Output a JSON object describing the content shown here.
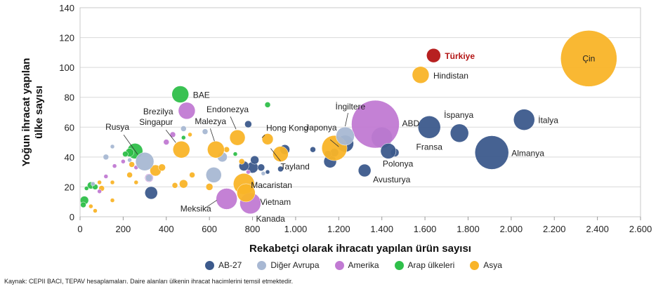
{
  "chart_data": {
    "type": "scatter",
    "xlabel": "Rekabetçi olarak ihracatı yapılan ürün sayısı",
    "ylabel": "Yoğun ihracat yapılan\nülke sayısı",
    "xlim": [
      0,
      2600
    ],
    "ylim": [
      0,
      140
    ],
    "x_ticks": [
      "0",
      "200",
      "400",
      "600",
      "800",
      "1.000",
      "1.200",
      "1.400",
      "1.600",
      "1.800",
      "2.000",
      "2.200",
      "2.400",
      "2.600"
    ],
    "y_ticks": [
      "0",
      "20",
      "40",
      "60",
      "80",
      "100",
      "120",
      "140"
    ],
    "grid": "horizontal",
    "legend_position": "bottom",
    "colors": {
      "AB-27": "#3c5a8c",
      "Diğer Avrupa": "#a8b8d3",
      "Amerika": "#c17ad3",
      "Arap ülkeleri": "#2fbf4a",
      "Asya": "#f9b428",
      "Türkiye": "#b31414"
    },
    "legend": [
      "AB-27",
      "Diğer Avrupa",
      "Amerika",
      "Arap ülkeleri",
      "Asya"
    ],
    "labeled_points": [
      {
        "name": "Çin",
        "group": "Asya",
        "x": 2360,
        "y": 106,
        "size": 40
      },
      {
        "name": "Türkiye",
        "group": "Türkiye",
        "x": 1640,
        "y": 108,
        "size": 10
      },
      {
        "name": "Hindistan",
        "group": "Asya",
        "x": 1580,
        "y": 95,
        "size": 12
      },
      {
        "name": "İtalya",
        "group": "AB-27",
        "x": 2060,
        "y": 65,
        "size": 15
      },
      {
        "name": "İspanya",
        "group": "AB-27",
        "x": 1760,
        "y": 56,
        "size": 13
      },
      {
        "name": "Almanya",
        "group": "AB-27",
        "x": 1910,
        "y": 43,
        "size": 24
      },
      {
        "name": "Fransa",
        "group": "AB-27",
        "x": 1620,
        "y": 60,
        "size": 16
      },
      {
        "name": "ABD",
        "group": "Amerika",
        "x": 1370,
        "y": 62,
        "size": 34
      },
      {
        "name": "İngiltere",
        "group": "Diğer Avrupa",
        "x": 1230,
        "y": 54,
        "size": 13
      },
      {
        "name": "Japonya",
        "group": "Asya",
        "x": 1180,
        "y": 46,
        "size": 18
      },
      {
        "name": "Polonya",
        "group": "AB-27",
        "x": 1430,
        "y": 44,
        "size": 11
      },
      {
        "name": "Avusturya",
        "group": "AB-27",
        "x": 1320,
        "y": 31,
        "size": 9
      },
      {
        "name": "Tayland",
        "group": "Asya",
        "x": 930,
        "y": 42,
        "size": 11
      },
      {
        "name": "Hong Kong",
        "group": "Asya",
        "x": 870,
        "y": 52,
        "size": 8
      },
      {
        "name": "Endonezya",
        "group": "Asya",
        "x": 730,
        "y": 53,
        "size": 11
      },
      {
        "name": "Malezya",
        "group": "Asya",
        "x": 630,
        "y": 45,
        "size": 12
      },
      {
        "name": "Singapur",
        "group": "Asya",
        "x": 470,
        "y": 45,
        "size": 12
      },
      {
        "name": "Rusya",
        "group": "Diğer Avrupa",
        "x": 300,
        "y": 37,
        "size": 13
      },
      {
        "name": "Brezilya",
        "group": "Amerika",
        "x": 495,
        "y": 71,
        "size": 12
      },
      {
        "name": "BAE",
        "group": "Arap ülkeleri",
        "x": 465,
        "y": 82,
        "size": 12
      },
      {
        "name": "Macaristan",
        "group": "Asya",
        "x": 760,
        "y": 22,
        "size": 15
      },
      {
        "name": "Vietnam",
        "group": "Asya",
        "x": 770,
        "y": 16,
        "size": 13
      },
      {
        "name": "Meksika",
        "group": "Amerika",
        "x": 680,
        "y": 12,
        "size": 15
      },
      {
        "name": "Kanada",
        "group": "Amerika",
        "x": 790,
        "y": 9,
        "size": 15
      }
    ],
    "other_points": [
      {
        "group": "AB-27",
        "x": 1230,
        "y": 49,
        "size": 12
      },
      {
        "group": "AB-27",
        "x": 1400,
        "y": 53,
        "size": 15
      },
      {
        "group": "AB-27",
        "x": 1460,
        "y": 43,
        "size": 6
      },
      {
        "group": "AB-27",
        "x": 1180,
        "y": 43,
        "size": 6
      },
      {
        "group": "AB-27",
        "x": 1150,
        "y": 42,
        "size": 5
      },
      {
        "group": "AB-27",
        "x": 1160,
        "y": 37,
        "size": 9
      },
      {
        "group": "AB-27",
        "x": 1080,
        "y": 45,
        "size": 4
      },
      {
        "group": "AB-27",
        "x": 950,
        "y": 45,
        "size": 7
      },
      {
        "group": "AB-27",
        "x": 930,
        "y": 32,
        "size": 4
      },
      {
        "group": "AB-27",
        "x": 810,
        "y": 38,
        "size": 6
      },
      {
        "group": "AB-27",
        "x": 800,
        "y": 33,
        "size": 8
      },
      {
        "group": "AB-27",
        "x": 780,
        "y": 62,
        "size": 5
      },
      {
        "group": "AB-27",
        "x": 840,
        "y": 33,
        "size": 5
      },
      {
        "group": "AB-27",
        "x": 760,
        "y": 34,
        "size": 7
      },
      {
        "group": "AB-27",
        "x": 330,
        "y": 16,
        "size": 9
      },
      {
        "group": "AB-27",
        "x": 870,
        "y": 30,
        "size": 3
      },
      {
        "group": "Diğer Avrupa",
        "x": 620,
        "y": 28,
        "size": 11
      },
      {
        "group": "Diğer Avrupa",
        "x": 660,
        "y": 40,
        "size": 7
      },
      {
        "group": "Diğer Avrupa",
        "x": 580,
        "y": 57,
        "size": 4
      },
      {
        "group": "Diğer Avrupa",
        "x": 480,
        "y": 59,
        "size": 4
      },
      {
        "group": "Diğer Avrupa",
        "x": 320,
        "y": 26,
        "size": 5
      },
      {
        "group": "Diğer Avrupa",
        "x": 120,
        "y": 40,
        "size": 4
      },
      {
        "group": "Diğer Avrupa",
        "x": 150,
        "y": 47,
        "size": 3
      },
      {
        "group": "Diğer Avrupa",
        "x": 230,
        "y": 38,
        "size": 3
      },
      {
        "group": "Diğer Avrupa",
        "x": 60,
        "y": 22,
        "size": 3
      },
      {
        "group": "Diğer Avrupa",
        "x": 850,
        "y": 29,
        "size": 3
      },
      {
        "group": "Amerika",
        "x": 320,
        "y": 26,
        "size": 6
      },
      {
        "group": "Amerika",
        "x": 400,
        "y": 50,
        "size": 4
      },
      {
        "group": "Amerika",
        "x": 430,
        "y": 55,
        "size": 4
      },
      {
        "group": "Amerika",
        "x": 260,
        "y": 33,
        "size": 3
      },
      {
        "group": "Amerika",
        "x": 200,
        "y": 37,
        "size": 3
      },
      {
        "group": "Amerika",
        "x": 160,
        "y": 34,
        "size": 3
      },
      {
        "group": "Amerika",
        "x": 120,
        "y": 27,
        "size": 3
      },
      {
        "group": "Amerika",
        "x": 90,
        "y": 17,
        "size": 3
      },
      {
        "group": "Amerika",
        "x": 780,
        "y": 30,
        "size": 3
      },
      {
        "group": "Arap ülkeleri",
        "x": 255,
        "y": 44,
        "size": 11
      },
      {
        "group": "Arap ülkeleri",
        "x": 230,
        "y": 43,
        "size": 6
      },
      {
        "group": "Arap ülkeleri",
        "x": 210,
        "y": 42,
        "size": 4
      },
      {
        "group": "Arap ülkeleri",
        "x": 50,
        "y": 21,
        "size": 5
      },
      {
        "group": "Arap ülkeleri",
        "x": 30,
        "y": 19,
        "size": 3
      },
      {
        "group": "Arap ülkeleri",
        "x": 20,
        "y": 11,
        "size": 6
      },
      {
        "group": "Arap ülkeleri",
        "x": 15,
        "y": 8,
        "size": 4
      },
      {
        "group": "Arap ülkeleri",
        "x": 70,
        "y": 20,
        "size": 4
      },
      {
        "group": "Arap ülkeleri",
        "x": 480,
        "y": 53,
        "size": 3
      },
      {
        "group": "Arap ülkeleri",
        "x": 720,
        "y": 42,
        "size": 3
      },
      {
        "group": "Arap ülkeleri",
        "x": 870,
        "y": 75,
        "size": 4
      },
      {
        "group": "Asya",
        "x": 350,
        "y": 31,
        "size": 8
      },
      {
        "group": "Asya",
        "x": 380,
        "y": 33,
        "size": 5
      },
      {
        "group": "Asya",
        "x": 440,
        "y": 21,
        "size": 4
      },
      {
        "group": "Asya",
        "x": 480,
        "y": 22,
        "size": 6
      },
      {
        "group": "Asya",
        "x": 520,
        "y": 28,
        "size": 4
      },
      {
        "group": "Asya",
        "x": 600,
        "y": 20,
        "size": 5
      },
      {
        "group": "Asya",
        "x": 230,
        "y": 28,
        "size": 4
      },
      {
        "group": "Asya",
        "x": 240,
        "y": 35,
        "size": 4
      },
      {
        "group": "Asya",
        "x": 150,
        "y": 23,
        "size": 3
      },
      {
        "group": "Asya",
        "x": 100,
        "y": 19,
        "size": 4
      },
      {
        "group": "Asya",
        "x": 90,
        "y": 23,
        "size": 3
      },
      {
        "group": "Asya",
        "x": 150,
        "y": 11,
        "size": 3
      },
      {
        "group": "Asya",
        "x": 260,
        "y": 23,
        "size": 3
      },
      {
        "group": "Asya",
        "x": 750,
        "y": 37,
        "size": 4
      },
      {
        "group": "Asya",
        "x": 680,
        "y": 45,
        "size": 4
      },
      {
        "group": "Asya",
        "x": 510,
        "y": 55,
        "size": 3
      },
      {
        "group": "Asya",
        "x": 70,
        "y": 4,
        "size": 3
      },
      {
        "group": "Asya",
        "x": 50,
        "y": 7,
        "size": 3
      }
    ]
  },
  "legend_labels": {
    "ab27": "AB-27",
    "diger_avrupa": "Diğer Avrupa",
    "amerika": "Amerika",
    "arap": "Arap ülkeleri",
    "asya": "Asya"
  },
  "source_text": "Kaynak: CEPII BACI, TEPAV hesaplamaları. Daire alanları ülkenin ihracat hacimlerini temsil etmektedir."
}
